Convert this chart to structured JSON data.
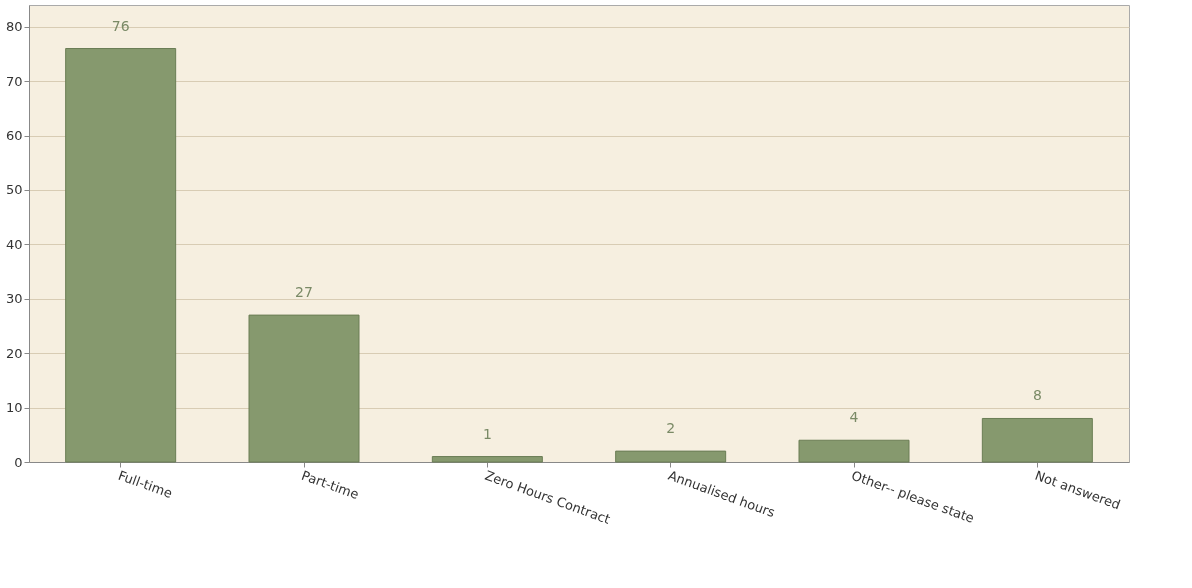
{
  "chart_data": {
    "type": "bar",
    "categories": [
      "Full-time",
      "Part-time",
      "Zero Hours Contract",
      "Annualised hours",
      "Other-- please state",
      "Not answered"
    ],
    "values": [
      76,
      27,
      1,
      2,
      4,
      8
    ],
    "color": "#86996e",
    "ylim": [
      0,
      84
    ],
    "yticks": [
      0,
      10,
      20,
      30,
      40,
      50,
      60,
      70,
      80
    ],
    "grid": "y",
    "data_labels": true
  }
}
